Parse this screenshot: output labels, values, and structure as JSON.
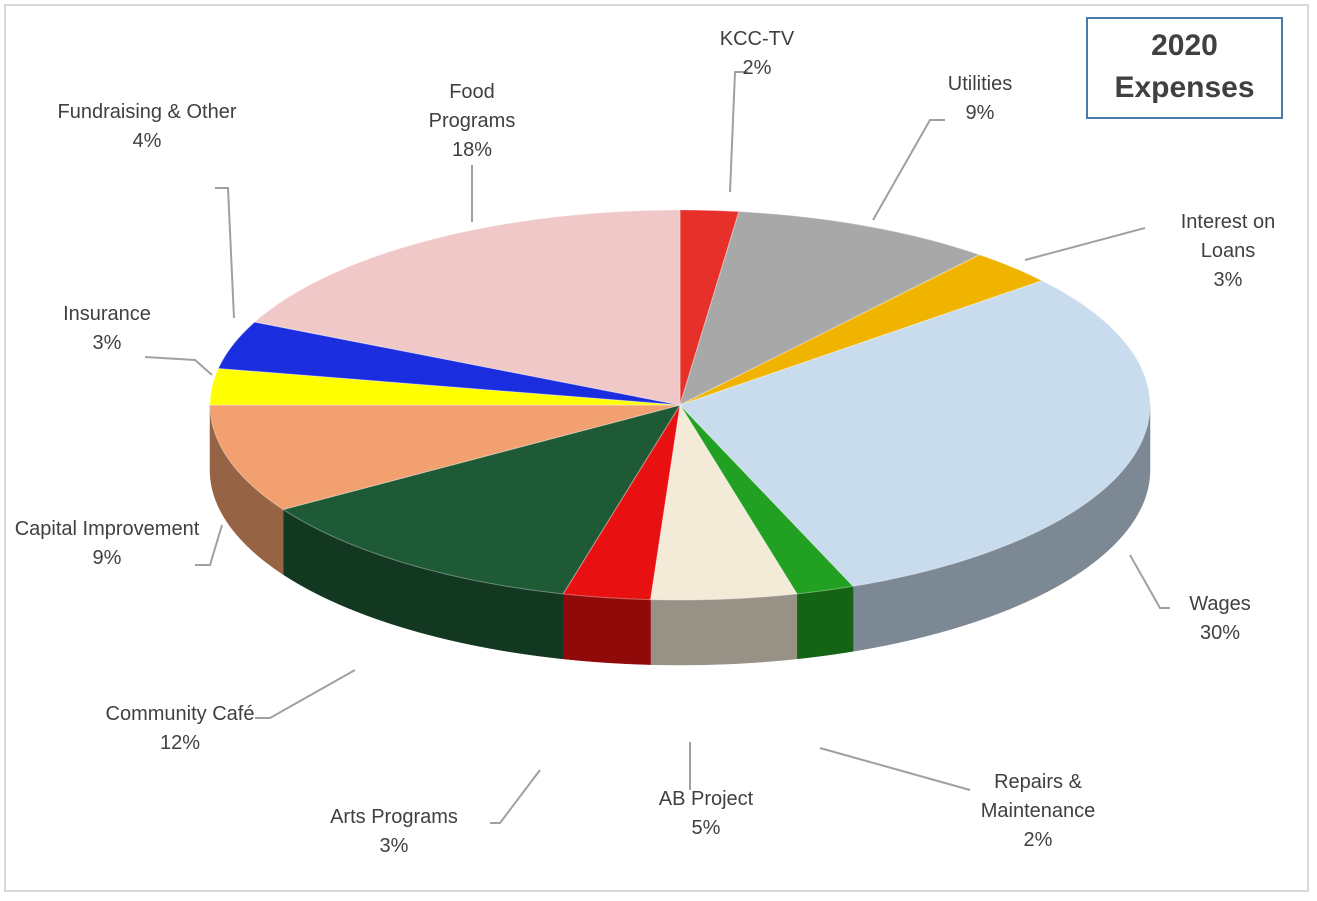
{
  "chart_data": {
    "type": "pie",
    "title": "2020 Expenses",
    "categories": [
      "KCC-TV",
      "Utilities",
      "Interest on Loans",
      "Wages",
      "Repairs & Maintenance",
      "AB Project",
      "Arts Programs",
      "Community Café",
      "Capital Improvement",
      "Insurance",
      "Fundraising & Other",
      "Food Programs"
    ],
    "values": [
      2,
      9,
      3,
      30,
      2,
      5,
      3,
      12,
      9,
      3,
      4,
      18
    ],
    "value_labels": [
      "2%",
      "9%",
      "3%",
      "30%",
      "2%",
      "5%",
      "3%",
      "12%",
      "9%",
      "3%",
      "4%",
      "18%"
    ],
    "colors": [
      "#e8302a",
      "#a8a8a8",
      "#f0b400",
      "#c8dcee",
      "#22a022",
      "#f3ead8",
      "#e81010",
      "#1e5a36",
      "#f2a070",
      "#ffff00",
      "#1a2ee0",
      "#f0c8c8"
    ]
  }
}
